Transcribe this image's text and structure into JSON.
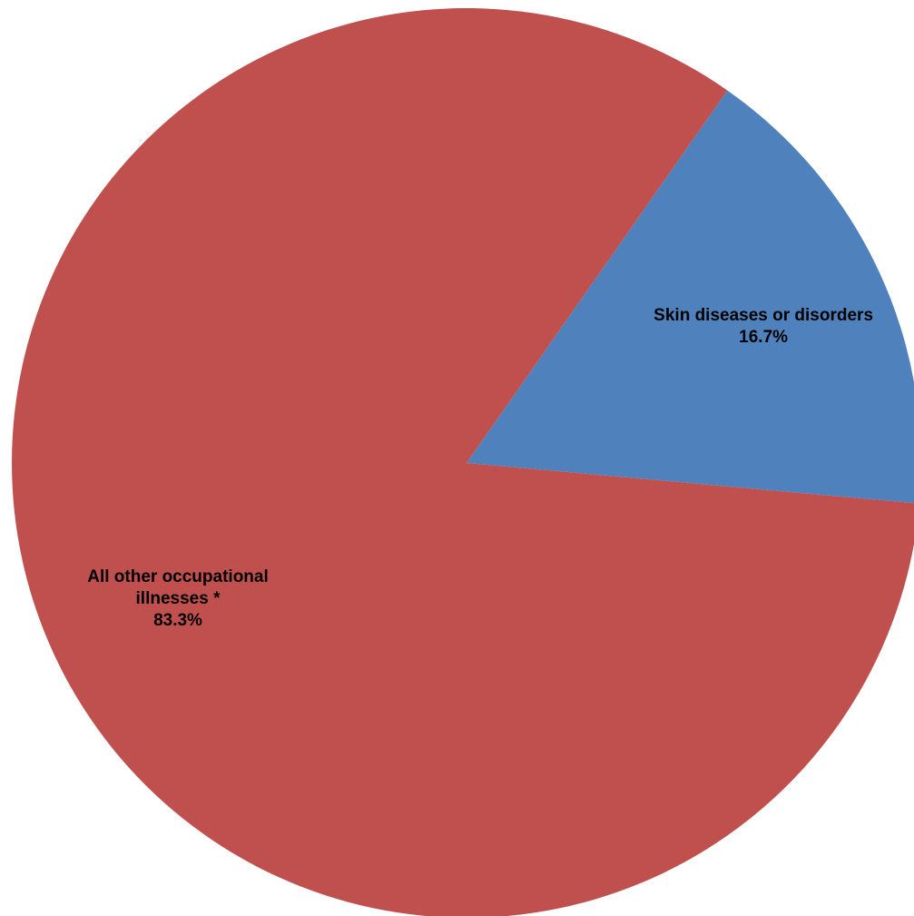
{
  "chart_data": {
    "type": "pie",
    "title": "",
    "slices": [
      {
        "label_lines": [
          "Skin diseases or disorders"
        ],
        "value": 16.7,
        "value_label": "16.7%",
        "color": "#4F81BD"
      },
      {
        "label_lines": [
          "All other occupational",
          "illnesses *"
        ],
        "value": 83.3,
        "value_label": "83.3%",
        "color": "#C0504D"
      }
    ],
    "start_angle_deg": -55,
    "direction": "clockwise",
    "legend": "none"
  }
}
